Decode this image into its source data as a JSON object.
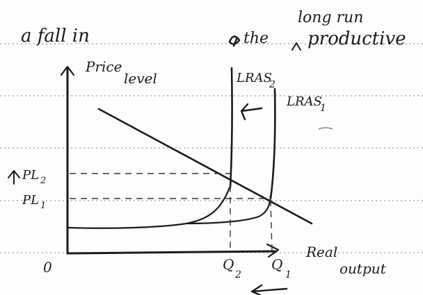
{
  "note": {
    "heading_left": "a fall in",
    "heading_mid": "the",
    "heading_over": "long run",
    "heading_right": "productive",
    "ink_color": "#1a1a1a",
    "paper_rule_color": "#9a9a9a"
  },
  "diagram": {
    "y_axis_label_line1": "Price",
    "y_axis_label_line2": "level",
    "x_axis_label_line1": "Real",
    "x_axis_label_line2": "output",
    "origin_label": "0",
    "curve_lras2_label": "LRAS",
    "curve_lras2_subscript": "2",
    "curve_lras1_label": "LRAS",
    "curve_lras1_subscript": "1",
    "pl2_label": "PL",
    "pl2_subscript": "2",
    "pl1_label": "PL",
    "pl1_subscript": "1",
    "q2_label": "Q",
    "q2_subscript": "2",
    "q1_label": "Q",
    "q1_subscript": "1"
  }
}
